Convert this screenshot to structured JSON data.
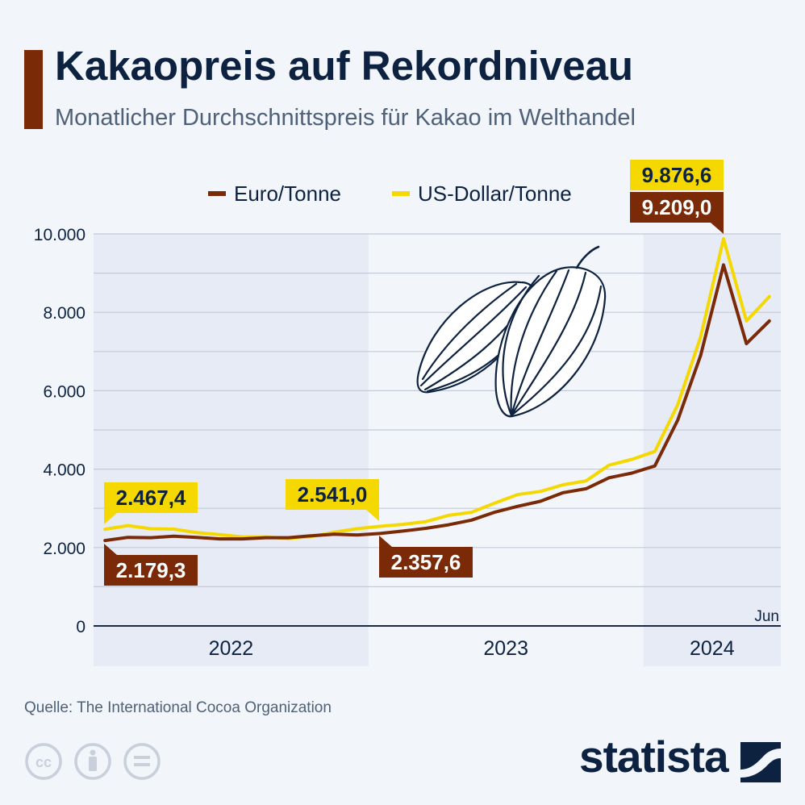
{
  "header": {
    "title": "Kakaopreis auf Rekordniveau",
    "subtitle": "Monatlicher Durchschnittspreis für Kakao im Welthandel"
  },
  "footer": {
    "source": "Quelle: The International Cocoa Organization",
    "brand": "statista",
    "license_icons": [
      "cc-icon",
      "by-icon",
      "nd-icon"
    ]
  },
  "colors": {
    "accent": "#7a2a06",
    "euro": "#7a2a06",
    "usd": "#f5d800",
    "band": "#e6ebf5",
    "grid": "#c3cad8",
    "text": "#0d2240",
    "muted": "#4f6178"
  },
  "illustration": "cocoa-beans-icon",
  "chart_data": {
    "type": "line",
    "legend": {
      "position": "top"
    },
    "ylim": [
      0,
      10000
    ],
    "y_ticks": [
      "0",
      "2.000",
      "4.000",
      "6.000",
      "8.000",
      "10.000"
    ],
    "y_tick_values": [
      0,
      2000,
      4000,
      6000,
      8000,
      10000
    ],
    "grid": true,
    "x_range": [
      "2022-01",
      "2024-06"
    ],
    "x_end_label": "Jun",
    "years": [
      {
        "label": "2022",
        "start": "2022-01",
        "end": "2022-12"
      },
      {
        "label": "2023",
        "start": "2023-01",
        "end": "2023-12"
      },
      {
        "label": "2024",
        "start": "2024-01",
        "end": "2024-06"
      }
    ],
    "x": [
      "2022-01",
      "2022-02",
      "2022-03",
      "2022-04",
      "2022-05",
      "2022-06",
      "2022-07",
      "2022-08",
      "2022-09",
      "2022-10",
      "2022-11",
      "2022-12",
      "2023-01",
      "2023-02",
      "2023-03",
      "2023-04",
      "2023-05",
      "2023-06",
      "2023-07",
      "2023-08",
      "2023-09",
      "2023-10",
      "2023-11",
      "2023-12",
      "2024-01",
      "2024-02",
      "2024-03",
      "2024-04",
      "2024-05",
      "2024-06"
    ],
    "series": [
      {
        "name": "Euro/Tonne",
        "color": "#7a2a06",
        "values": [
          2179.3,
          2260,
          2250,
          2290,
          2260,
          2220,
          2220,
          2250,
          2250,
          2300,
          2340,
          2320,
          2357.6,
          2420,
          2490,
          2580,
          2700,
          2900,
          3050,
          3180,
          3400,
          3500,
          3780,
          3900,
          4080,
          5250,
          6900,
          9209.0,
          7200,
          7780
        ]
      },
      {
        "name": "US-Dollar/Tonne",
        "color": "#f5d800",
        "values": [
          2467.4,
          2560,
          2480,
          2470,
          2380,
          2330,
          2270,
          2270,
          2230,
          2280,
          2390,
          2480,
          2541.0,
          2590,
          2660,
          2820,
          2900,
          3130,
          3350,
          3430,
          3600,
          3700,
          4100,
          4250,
          4450,
          5640,
          7370,
          9876.6,
          7780,
          8400
        ]
      }
    ],
    "annotations": [
      {
        "series": "US-Dollar/Tonne",
        "x": "2022-01",
        "y": 2467.4,
        "label": "2.467,4"
      },
      {
        "series": "Euro/Tonne",
        "x": "2022-01",
        "y": 2179.3,
        "label": "2.179,3"
      },
      {
        "series": "US-Dollar/Tonne",
        "x": "2023-01",
        "y": 2541.0,
        "label": "2.541,0"
      },
      {
        "series": "Euro/Tonne",
        "x": "2023-01",
        "y": 2357.6,
        "label": "2.357,6"
      },
      {
        "series": "US-Dollar/Tonne",
        "x": "2024-04",
        "y": 9876.6,
        "label": "9.876,6"
      },
      {
        "series": "Euro/Tonne",
        "x": "2024-04",
        "y": 9209.0,
        "label": "9.209,0"
      }
    ]
  }
}
